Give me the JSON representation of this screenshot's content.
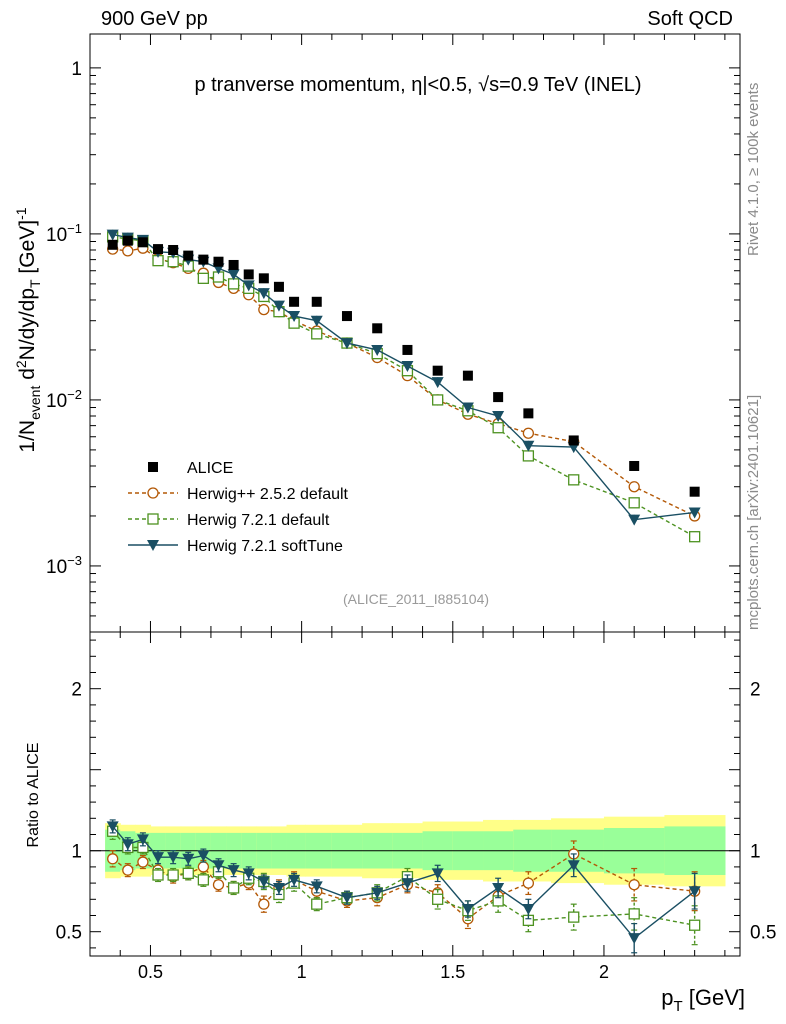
{
  "header": {
    "left": "900 GeV pp",
    "right": "Soft QCD"
  },
  "side_labels": {
    "version": "Rivet 4.1.0, ≥ 100k events",
    "source": "mcplots.cern.ch [arXiv:2401.10621]"
  },
  "chart_data": {
    "type": "scatter",
    "title_parts": [
      "p tranverse momentum, ",
      "η",
      "|<0.5, √s=0.9 TeV (INEL)"
    ],
    "analysis_tag": "(ALICE_2011_I885104)",
    "xlabel": "p",
    "xlabel_sub": "T",
    "xlabel_unit": " [GeV]",
    "ylabel_main": {
      "p1": "1/N",
      "s1": "event",
      "p2": " d",
      "s2": "2",
      "p3": "N/dy/dp",
      "s3": "T",
      "p4": " [GeV]",
      "s4": "-1"
    },
    "ylabel_ratio": "Ratio to ALICE",
    "xlim": [
      0.3,
      2.45
    ],
    "ylim_main": [
      0.0004,
      1.6
    ],
    "ylim_ratio": [
      0.35,
      2.35
    ],
    "x_ticks": [
      0.5,
      1,
      1.5,
      2
    ],
    "x_tick_labels": [
      "0.5",
      "1",
      "1.5",
      "2"
    ],
    "y_ticks_main": [
      1,
      0.1,
      0.01,
      0.001
    ],
    "y_tick_labels_main": [
      {
        "base": "1",
        "exp": ""
      },
      {
        "base": "10",
        "exp": "−1"
      },
      {
        "base": "10",
        "exp": "−2"
      },
      {
        "base": "10",
        "exp": "−3"
      }
    ],
    "y_ticks_ratio": [
      2,
      1,
      0.5
    ],
    "y_tick_labels_ratio": [
      "2",
      "1",
      "0.5"
    ],
    "x": [
      0.375,
      0.425,
      0.475,
      0.525,
      0.575,
      0.625,
      0.675,
      0.725,
      0.775,
      0.825,
      0.875,
      0.925,
      0.975,
      1.05,
      1.15,
      1.25,
      1.35,
      1.45,
      1.55,
      1.65,
      1.75,
      1.9,
      2.1,
      2.3
    ],
    "data": {
      "name": "ALICE",
      "values": [
        0.086,
        0.091,
        0.089,
        0.081,
        0.08,
        0.074,
        0.07,
        0.068,
        0.065,
        0.057,
        0.054,
        0.048,
        0.039,
        0.039,
        0.032,
        0.027,
        0.02,
        0.015,
        0.014,
        0.0104,
        0.0083,
        0.0057,
        0.004,
        0.0028
      ],
      "band_inner": [
        0.13,
        0.12,
        0.11,
        0.11,
        0.11,
        0.11,
        0.11,
        0.11,
        0.11,
        0.11,
        0.11,
        0.11,
        0.11,
        0.11,
        0.11,
        0.11,
        0.11,
        0.12,
        0.12,
        0.12,
        0.13,
        0.13,
        0.14,
        0.15
      ],
      "band_outer": [
        0.17,
        0.16,
        0.16,
        0.15,
        0.15,
        0.15,
        0.15,
        0.15,
        0.15,
        0.15,
        0.15,
        0.15,
        0.16,
        0.16,
        0.16,
        0.17,
        0.17,
        0.18,
        0.18,
        0.19,
        0.19,
        0.2,
        0.21,
        0.22
      ]
    },
    "series": [
      {
        "name": "Herwig++ 2.5.2 default",
        "color": "#b35806",
        "marker": "circle",
        "dash": "4,3",
        "values": [
          0.081,
          0.079,
          0.082,
          0.071,
          0.067,
          0.062,
          0.058,
          0.051,
          0.047,
          0.043,
          0.035,
          0.034,
          0.03,
          0.026,
          0.022,
          0.018,
          0.014,
          0.01,
          0.0082,
          0.0072,
          0.0063,
          0.0056,
          0.003,
          0.002
        ],
        "ratio": [
          0.95,
          0.88,
          0.93,
          0.88,
          0.84,
          0.86,
          0.9,
          0.79,
          0.77,
          0.8,
          0.67,
          0.77,
          0.82,
          0.75,
          0.69,
          0.71,
          0.79,
          0.74,
          0.58,
          0.72,
          0.8,
          0.98,
          0.79,
          0.75
        ],
        "ratio_err": [
          0.05,
          0.04,
          0.04,
          0.04,
          0.04,
          0.04,
          0.04,
          0.04,
          0.04,
          0.04,
          0.05,
          0.05,
          0.05,
          0.04,
          0.04,
          0.05,
          0.05,
          0.05,
          0.06,
          0.06,
          0.07,
          0.08,
          0.1,
          0.12
        ]
      },
      {
        "name": "Herwig 7.2.1 default",
        "color": "#4d9221",
        "marker": "square",
        "dash": "4,3",
        "values": [
          0.096,
          0.093,
          0.091,
          0.069,
          0.068,
          0.064,
          0.054,
          0.055,
          0.05,
          0.047,
          0.042,
          0.034,
          0.029,
          0.025,
          0.022,
          0.019,
          0.015,
          0.01,
          0.0086,
          0.0068,
          0.0046,
          0.0033,
          0.0024,
          0.0015
        ],
        "ratio": [
          1.12,
          1.02,
          1.02,
          0.85,
          0.85,
          0.86,
          0.82,
          0.87,
          0.77,
          0.83,
          0.81,
          0.73,
          0.8,
          0.67,
          0.71,
          0.74,
          0.84,
          0.7,
          0.63,
          0.69,
          0.57,
          0.59,
          0.61,
          0.54
        ],
        "ratio_err": [
          0.05,
          0.04,
          0.04,
          0.04,
          0.04,
          0.04,
          0.04,
          0.04,
          0.04,
          0.04,
          0.05,
          0.05,
          0.05,
          0.04,
          0.04,
          0.05,
          0.05,
          0.06,
          0.06,
          0.07,
          0.07,
          0.08,
          0.1,
          0.12
        ]
      },
      {
        "name": "Herwig 7.2.1 softTune",
        "color": "#1a4f63",
        "marker": "triangle-down",
        "dash": "",
        "values": [
          0.099,
          0.095,
          0.092,
          0.078,
          0.077,
          0.07,
          0.068,
          0.062,
          0.057,
          0.049,
          0.044,
          0.037,
          0.032,
          0.03,
          0.022,
          0.02,
          0.016,
          0.0128,
          0.009,
          0.008,
          0.0053,
          0.0052,
          0.0019,
          0.0021
        ],
        "ratio": [
          1.15,
          1.04,
          1.07,
          0.96,
          0.96,
          0.95,
          0.97,
          0.91,
          0.88,
          0.86,
          0.81,
          0.77,
          0.82,
          0.78,
          0.71,
          0.74,
          0.8,
          0.86,
          0.64,
          0.77,
          0.64,
          0.91,
          0.46,
          0.75
        ],
        "ratio_err": [
          0.04,
          0.04,
          0.04,
          0.04,
          0.04,
          0.04,
          0.04,
          0.04,
          0.04,
          0.04,
          0.04,
          0.04,
          0.04,
          0.04,
          0.04,
          0.04,
          0.05,
          0.05,
          0.05,
          0.06,
          0.06,
          0.07,
          0.09,
          0.11
        ]
      }
    ],
    "legend": [
      "ALICE",
      "Herwig++ 2.5.2 default",
      "Herwig 7.2.1 default",
      "Herwig 7.2.1 softTune"
    ],
    "legend_position": "lower-left"
  }
}
